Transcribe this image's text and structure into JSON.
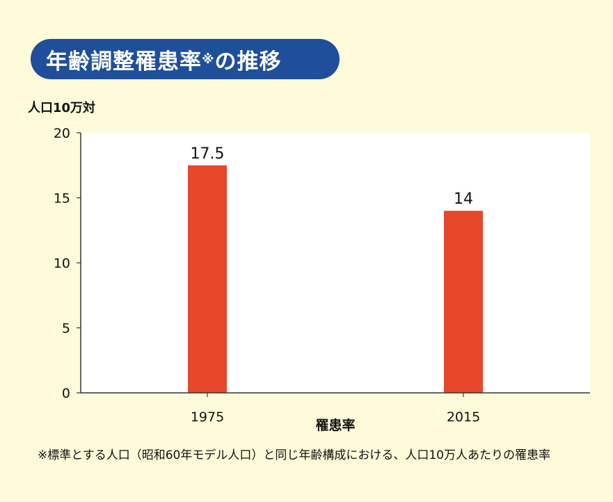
{
  "header": {
    "title_main": "年齢調整罹患率",
    "title_mark": "※",
    "title_tail": "の推移"
  },
  "chart_data": {
    "type": "bar",
    "title": "年齢調整罹患率※の推移",
    "ylabel": "人口10万対",
    "xlabel": "罹患率",
    "categories": [
      "1975",
      "2015"
    ],
    "values": [
      17.5,
      14
    ],
    "data_labels": [
      "17.5",
      "14"
    ],
    "ylim": [
      0,
      20
    ],
    "yticks": [
      0,
      5,
      10,
      15,
      20
    ],
    "grid": false,
    "bar_color": "#e8472a",
    "plot_background": "#ffffff"
  },
  "footnote": "※標準とする人口（昭和60年モデル人口）と同じ年齢構成における、人口10万人あたりの罹患率"
}
